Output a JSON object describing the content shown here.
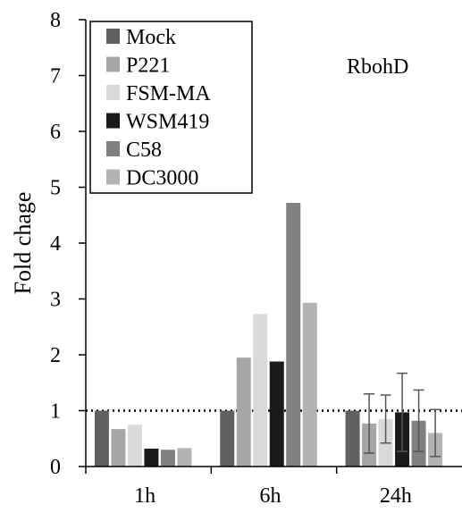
{
  "chart_data": {
    "type": "bar",
    "title": "",
    "annotation": "RbohD",
    "xlabel": "",
    "ylabel": "Fold chage",
    "ylim": [
      0,
      8
    ],
    "yticks": [
      "0",
      "1",
      "2",
      "3",
      "4",
      "5",
      "6",
      "7",
      "8"
    ],
    "categories": [
      "1h",
      "6h",
      "24h"
    ],
    "reference_line": 1,
    "legend_position": "top-left",
    "series": [
      {
        "name": "Mock",
        "color": "#606060",
        "values": [
          1.0,
          1.0,
          1.0
        ],
        "errors": [
          null,
          null,
          null
        ]
      },
      {
        "name": "P221",
        "color": "#a6a6a6",
        "values": [
          0.67,
          1.95,
          0.77
        ],
        "errors": [
          null,
          null,
          0.53
        ]
      },
      {
        "name": "FSM-MA",
        "color": "#d9d9d9",
        "values": [
          0.75,
          2.73,
          0.85
        ],
        "errors": [
          null,
          null,
          0.43
        ]
      },
      {
        "name": "WSM419",
        "color": "#1a1a1a",
        "values": [
          0.32,
          1.88,
          0.97
        ],
        "errors": [
          null,
          null,
          0.7
        ]
      },
      {
        "name": "C58",
        "color": "#808080",
        "values": [
          0.3,
          4.72,
          0.82
        ],
        "errors": [
          null,
          null,
          0.55
        ]
      },
      {
        "name": "DC3000",
        "color": "#b3b3b3",
        "values": [
          0.33,
          2.93,
          0.6
        ],
        "errors": [
          null,
          null,
          0.42
        ]
      }
    ]
  }
}
